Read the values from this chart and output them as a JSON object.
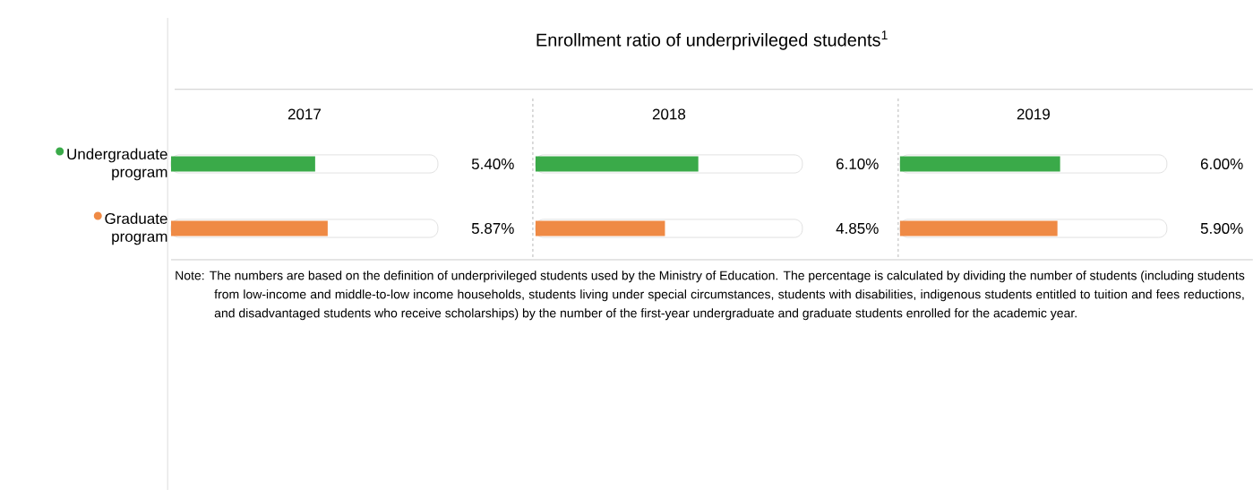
{
  "chart_data": [
    {
      "type": "bar",
      "orientation": "horizontal",
      "subtitle": "2017",
      "categories": [
        "Undergraduate program",
        "Graduate program"
      ],
      "values": [
        5.4,
        5.87
      ],
      "value_labels": [
        "5.40%",
        "5.87%"
      ],
      "colors": [
        "#3aaa49",
        "#ef8a45"
      ],
      "xlim": [
        0,
        10
      ],
      "tick_labels": "y",
      "annotations": [
        "Note: The numbers are based on the definition of underprivileged students used by the Ministry of Education. The percentage is calculated by dividing the number of students (including students from low-income and middle-to-low income households, students living under special circumstances, students with disabilities, indigenous students entitled to tuition and fees reductions, and disadvantaged students who receive scholarships) by the number of the first-year undergraduate and graduate students enrolled for the academic year."
      ]
    },
    {
      "type": "bar",
      "orientation": "horizontal",
      "title": "Enrollment ratio of underprivileged students$^{1}$",
      "subtitle": "2018",
      "values": [
        6.1,
        4.85
      ],
      "value_labels": [
        "6.10%",
        "4.85%"
      ],
      "colors": [
        "#3aaa49",
        "#ef8a45"
      ],
      "xlim": [
        0,
        10
      ],
      "tick_labels": false
    },
    {
      "type": "bar",
      "orientation": "horizontal",
      "subtitle": "2019",
      "values": [
        6.0,
        5.9
      ],
      "value_labels": [
        "6.00%",
        "5.90%"
      ],
      "colors": [
        "#3aaa49",
        "#ef8a45"
      ],
      "xlim": [
        0,
        10
      ],
      "tick_labels": false
    }
  ]
}
